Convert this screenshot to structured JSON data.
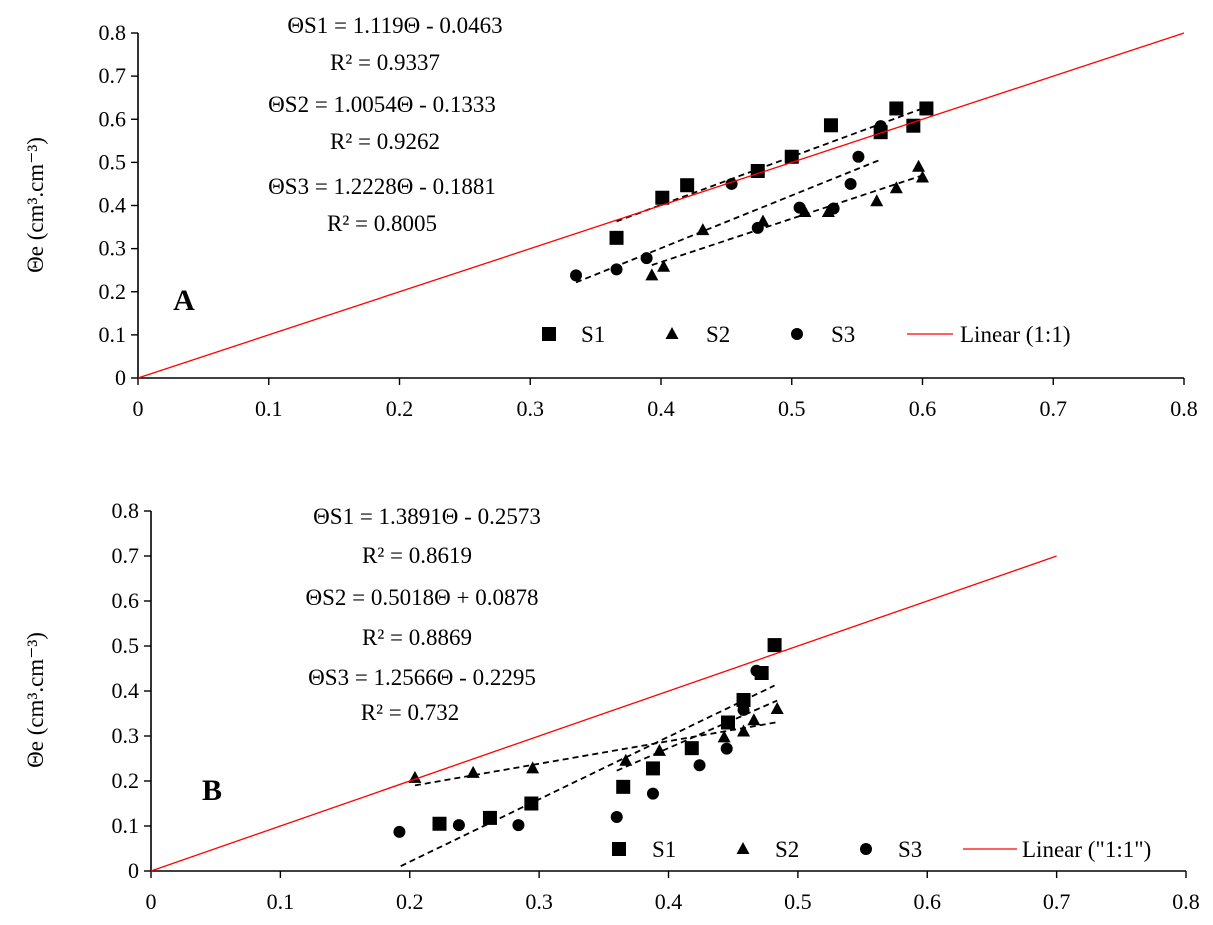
{
  "chart_data": [
    {
      "type": "scatter",
      "panel_label": "A",
      "ylabel": "Θe (cm³.cm⁻³)",
      "xlabel": "",
      "xlim": [
        0,
        0.8
      ],
      "ylim": [
        0,
        0.8
      ],
      "xticks": [
        "0",
        "0.1",
        "0.2",
        "0.3",
        "0.4",
        "0.5",
        "0.6",
        "0.7",
        "0.8"
      ],
      "yticks": [
        "0",
        "0.1",
        "0.2",
        "0.3",
        "0.4",
        "0.5",
        "0.6",
        "0.7",
        "0.8"
      ],
      "grid": false,
      "legend_position": "bottom-right",
      "series": [
        {
          "name": "S1",
          "marker": "square",
          "points": [
            [
              0.366,
              0.325
            ],
            [
              0.401,
              0.418
            ],
            [
              0.42,
              0.447
            ],
            [
              0.474,
              0.48
            ],
            [
              0.5,
              0.513
            ],
            [
              0.53,
              0.586
            ],
            [
              0.568,
              0.57
            ],
            [
              0.58,
              0.625
            ],
            [
              0.593,
              0.585
            ],
            [
              0.603,
              0.625
            ]
          ],
          "trend": {
            "slope": 1.119,
            "intercept": -0.0463,
            "x_range": [
              0.366,
              0.603
            ]
          }
        },
        {
          "name": "S2",
          "marker": "triangle",
          "points": [
            [
              0.393,
              0.238
            ],
            [
              0.402,
              0.258
            ],
            [
              0.432,
              0.343
            ],
            [
              0.478,
              0.363
            ],
            [
              0.51,
              0.385
            ],
            [
              0.528,
              0.385
            ],
            [
              0.565,
              0.41
            ],
            [
              0.58,
              0.44
            ],
            [
              0.597,
              0.49
            ],
            [
              0.6,
              0.465
            ]
          ],
          "trend": {
            "slope": 1.0054,
            "intercept": -0.1333,
            "x_range": [
              0.393,
              0.6
            ]
          }
        },
        {
          "name": "S3",
          "marker": "circle",
          "points": [
            [
              0.335,
              0.238
            ],
            [
              0.366,
              0.252
            ],
            [
              0.389,
              0.278
            ],
            [
              0.454,
              0.45
            ],
            [
              0.474,
              0.348
            ],
            [
              0.506,
              0.395
            ],
            [
              0.532,
              0.393
            ],
            [
              0.545,
              0.45
            ],
            [
              0.551,
              0.513
            ],
            [
              0.568,
              0.584
            ]
          ],
          "trend": {
            "slope": 1.2228,
            "intercept": -0.1881,
            "x_range": [
              0.335,
              0.568
            ]
          }
        },
        {
          "name": "Linear (1:1)",
          "marker": "line",
          "line": {
            "x0": 0,
            "y0": 0,
            "x1": 0.8,
            "y1": 0.8
          },
          "color": "#ff0000"
        }
      ],
      "annotations": [
        {
          "id": "eq1",
          "text": "ΘS1 = 1.119Θ - 0.0463"
        },
        {
          "id": "r1",
          "text": "R² = 0.9337"
        },
        {
          "id": "eq2",
          "text": "ΘS2  = 1.0054Θ - 0.1333"
        },
        {
          "id": "r2",
          "text": "R² = 0.9262"
        },
        {
          "id": "eq3",
          "text": "ΘS3  = 1.2228Θ - 0.1881"
        },
        {
          "id": "r3",
          "text": "R² = 0.8005"
        }
      ]
    },
    {
      "type": "scatter",
      "panel_label": "B",
      "ylabel": "Θe (cm³.cm⁻³)",
      "xlabel": "",
      "xlim": [
        0,
        0.8
      ],
      "ylim": [
        0,
        0.8
      ],
      "xticks": [
        "0",
        "0.1",
        "0.2",
        "0.3",
        "0.4",
        "0.5",
        "0.6",
        "0.7",
        "0.8"
      ],
      "yticks": [
        "0",
        "0.1",
        "0.2",
        "0.3",
        "0.4",
        "0.5",
        "0.6",
        "0.7",
        "0.8"
      ],
      "grid": false,
      "legend_position": "bottom-right",
      "series": [
        {
          "name": "S1",
          "marker": "square",
          "points": [
            [
              0.223,
              0.105
            ],
            [
              0.262,
              0.118
            ],
            [
              0.294,
              0.15
            ],
            [
              0.365,
              0.187
            ],
            [
              0.388,
              0.228
            ],
            [
              0.418,
              0.273
            ],
            [
              0.446,
              0.33
            ],
            [
              0.458,
              0.38
            ],
            [
              0.472,
              0.44
            ],
            [
              0.482,
              0.502
            ]
          ],
          "trend": {
            "slope": 1.3891,
            "intercept": -0.2573,
            "x_range": [
              0.193,
              0.482
            ]
          }
        },
        {
          "name": "S2",
          "marker": "triangle",
          "points": [
            [
              0.204,
              0.207
            ],
            [
              0.249,
              0.218
            ],
            [
              0.295,
              0.228
            ],
            [
              0.367,
              0.245
            ],
            [
              0.393,
              0.267
            ],
            [
              0.443,
              0.297
            ],
            [
              0.458,
              0.31
            ],
            [
              0.466,
              0.335
            ],
            [
              0.484,
              0.36
            ]
          ],
          "trend": {
            "slope": 0.5018,
            "intercept": 0.0878,
            "x_range": [
              0.204,
              0.484
            ]
          }
        },
        {
          "name": "S3",
          "marker": "circle",
          "points": [
            [
              0.192,
              0.087
            ],
            [
              0.238,
              0.102
            ],
            [
              0.284,
              0.102
            ],
            [
              0.36,
              0.12
            ],
            [
              0.388,
              0.172
            ],
            [
              0.424,
              0.235
            ],
            [
              0.445,
              0.272
            ],
            [
              0.458,
              0.358
            ],
            [
              0.468,
              0.445
            ]
          ],
          "trend": {
            "slope": 1.2566,
            "intercept": -0.2295,
            "x_range": [
              0.36,
              0.484
            ]
          }
        },
        {
          "name": "Linear (\"1:1\")",
          "marker": "line",
          "line": {
            "x0": 0,
            "y0": 0,
            "x1": 0.7,
            "y1": 0.7
          },
          "color": "#ff0000"
        }
      ],
      "annotations": [
        {
          "id": "eq1",
          "text": "ΘS1  = 1.3891Θ - 0.2573"
        },
        {
          "id": "r1",
          "text": "R² = 0.8619"
        },
        {
          "id": "eq2",
          "text": "ΘS2  = 0.5018Θ + 0.0878"
        },
        {
          "id": "r2",
          "text": "R² = 0.8869"
        },
        {
          "id": "eq3",
          "text": "ΘS3  = 1.2566Θ - 0.2295"
        },
        {
          "id": "r3",
          "text": "R² = 0.732"
        }
      ]
    }
  ]
}
